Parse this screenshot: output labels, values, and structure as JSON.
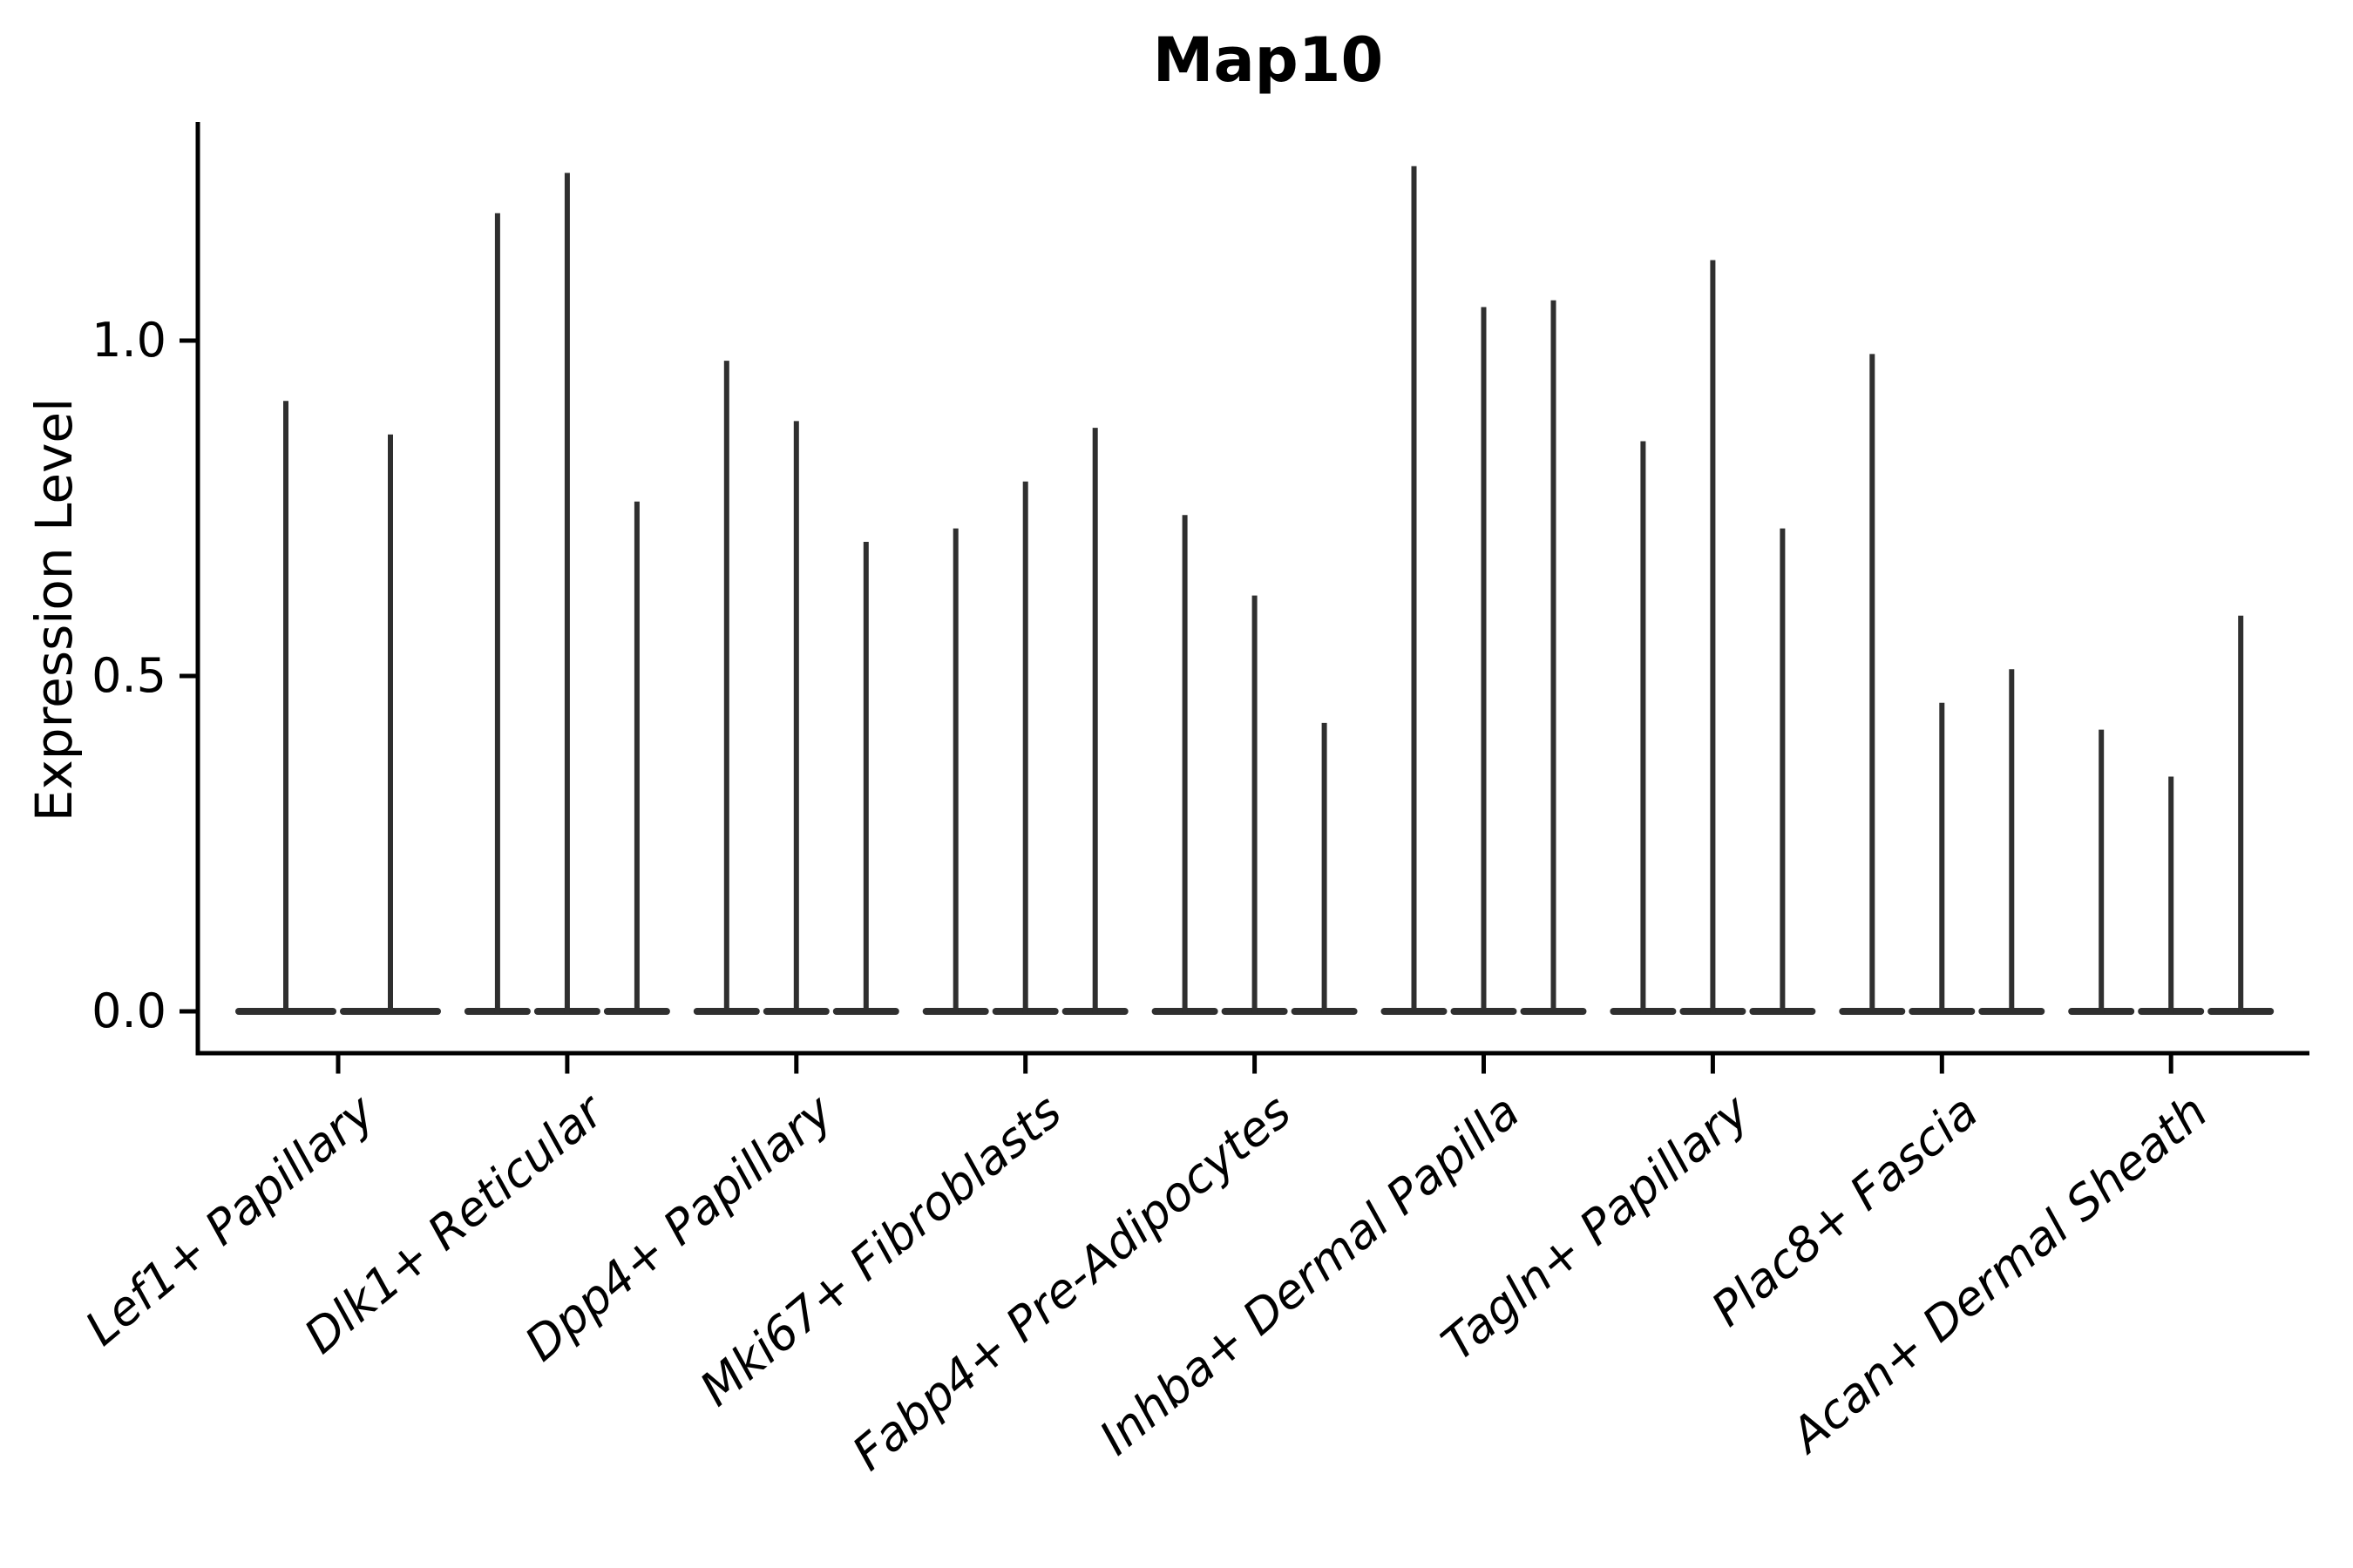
{
  "chart_data": {
    "type": "violin",
    "title": "Map10",
    "ylabel": "Expression Level",
    "xlabel": "",
    "ytick_labels": [
      "0.0",
      "0.5",
      "1.0"
    ],
    "ytick_values": [
      0.0,
      0.5,
      1.0
    ],
    "ylim": [
      -0.06,
      1.33
    ],
    "grid": false,
    "legend": "none",
    "x_label_rotation_deg": 40,
    "x_label_style": "italic",
    "categories": [
      "Lef1+ Papillary",
      "Dlk1+ Reticular",
      "Dpp4+ Papillary",
      "Mki67+ Fibroblasts",
      "Fabp4+ Pre-Adipocytes",
      "Inhba+ Dermal Papilla",
      "Tagln+ Papillary",
      "Plac8+ Fascia",
      "Acan+ Dermal Sheath"
    ],
    "groups": [
      {
        "label": "Lef1+ Papillary",
        "violin_max_values": [
          0.91,
          0.86
        ]
      },
      {
        "label": "Dlk1+ Reticular",
        "violin_max_values": [
          1.19,
          1.25,
          0.76
        ]
      },
      {
        "label": "Dpp4+ Papillary",
        "violin_max_values": [
          0.97,
          0.88,
          0.7
        ]
      },
      {
        "label": "Mki67+ Fibroblasts",
        "violin_max_values": [
          0.72,
          0.79,
          0.87
        ]
      },
      {
        "label": "Fabp4+ Pre-Adipocytes",
        "violin_max_values": [
          0.74,
          0.62,
          0.43
        ]
      },
      {
        "label": "Inhba+ Dermal Papilla",
        "violin_max_values": [
          1.26,
          1.05,
          1.06
        ]
      },
      {
        "label": "Tagln+ Papillary",
        "violin_max_values": [
          0.85,
          1.12,
          0.72
        ]
      },
      {
        "label": "Plac8+ Fascia",
        "violin_max_values": [
          0.98,
          0.46,
          0.51
        ]
      },
      {
        "label": "Acan+ Dermal Sheath",
        "violin_max_values": [
          0.42,
          0.35,
          0.59
        ]
      }
    ],
    "violin_description": "Each violin is collapsed at expression 0 (wide flat base) with a thin spike reaching the violin's maximum expression value",
    "colors": {
      "violin_line": "#2f2f2f",
      "axis_spine": "#000000",
      "text": "#000000",
      "background": "#ffffff"
    }
  }
}
